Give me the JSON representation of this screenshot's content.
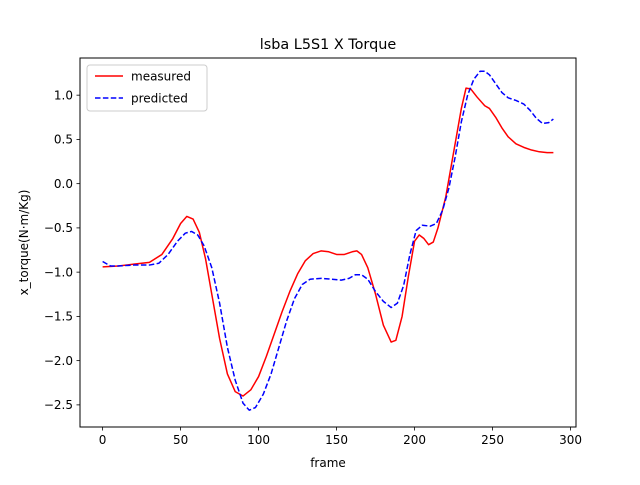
{
  "chart_data": {
    "type": "line",
    "title": "lsba L5S1 X Torque",
    "xlabel": "frame",
    "ylabel": "x_torque(N·m/Kg)",
    "xlim": [
      -14.5,
      303.5
    ],
    "ylim": [
      -2.75,
      1.42
    ],
    "xticks": [
      0,
      50,
      100,
      150,
      200,
      250,
      300
    ],
    "yticks": [
      -2.5,
      -2.0,
      -1.5,
      -1.0,
      -0.5,
      0.0,
      0.5,
      1.0
    ],
    "ytick_labels": [
      "−2.5",
      "−2.0",
      "−1.5",
      "−1.0",
      "−0.5",
      "0.0",
      "0.5",
      "1.0"
    ],
    "grid": false,
    "legend": {
      "placement": "top-left"
    },
    "series": [
      {
        "name": "measured",
        "color": "#ff0000",
        "dash": "solid",
        "points": [
          [
            0,
            -0.94
          ],
          [
            10,
            -0.93
          ],
          [
            20,
            -0.91
          ],
          [
            30,
            -0.89
          ],
          [
            38,
            -0.8
          ],
          [
            45,
            -0.62
          ],
          [
            50,
            -0.45
          ],
          [
            54,
            -0.37
          ],
          [
            58,
            -0.4
          ],
          [
            62,
            -0.55
          ],
          [
            66,
            -0.85
          ],
          [
            70,
            -1.25
          ],
          [
            75,
            -1.75
          ],
          [
            80,
            -2.15
          ],
          [
            85,
            -2.35
          ],
          [
            90,
            -2.4
          ],
          [
            95,
            -2.33
          ],
          [
            100,
            -2.18
          ],
          [
            105,
            -1.95
          ],
          [
            110,
            -1.7
          ],
          [
            115,
            -1.45
          ],
          [
            120,
            -1.22
          ],
          [
            125,
            -1.02
          ],
          [
            130,
            -0.87
          ],
          [
            135,
            -0.79
          ],
          [
            140,
            -0.76
          ],
          [
            145,
            -0.77
          ],
          [
            150,
            -0.8
          ],
          [
            155,
            -0.8
          ],
          [
            160,
            -0.77
          ],
          [
            163,
            -0.76
          ],
          [
            166,
            -0.8
          ],
          [
            170,
            -0.95
          ],
          [
            175,
            -1.25
          ],
          [
            180,
            -1.6
          ],
          [
            185,
            -1.79
          ],
          [
            188,
            -1.77
          ],
          [
            192,
            -1.5
          ],
          [
            196,
            -1.05
          ],
          [
            200,
            -0.65
          ],
          [
            203,
            -0.58
          ],
          [
            206,
            -0.62
          ],
          [
            209,
            -0.69
          ],
          [
            212,
            -0.66
          ],
          [
            215,
            -0.5
          ],
          [
            220,
            -0.15
          ],
          [
            225,
            0.35
          ],
          [
            230,
            0.85
          ],
          [
            233,
            1.08
          ],
          [
            236,
            1.07
          ],
          [
            240,
            0.98
          ],
          [
            245,
            0.88
          ],
          [
            248,
            0.85
          ],
          [
            252,
            0.75
          ],
          [
            256,
            0.63
          ],
          [
            260,
            0.53
          ],
          [
            265,
            0.45
          ],
          [
            270,
            0.41
          ],
          [
            275,
            0.38
          ],
          [
            280,
            0.36
          ],
          [
            285,
            0.35
          ],
          [
            289,
            0.35
          ]
        ]
      },
      {
        "name": "predicted",
        "color": "#0000ff",
        "dash": "dashed",
        "points": [
          [
            0,
            -0.88
          ],
          [
            5,
            -0.93
          ],
          [
            10,
            -0.93
          ],
          [
            20,
            -0.92
          ],
          [
            30,
            -0.92
          ],
          [
            36,
            -0.9
          ],
          [
            42,
            -0.8
          ],
          [
            48,
            -0.65
          ],
          [
            53,
            -0.56
          ],
          [
            57,
            -0.54
          ],
          [
            61,
            -0.58
          ],
          [
            65,
            -0.7
          ],
          [
            70,
            -0.95
          ],
          [
            75,
            -1.35
          ],
          [
            80,
            -1.85
          ],
          [
            85,
            -2.22
          ],
          [
            90,
            -2.48
          ],
          [
            94,
            -2.56
          ],
          [
            98,
            -2.53
          ],
          [
            103,
            -2.38
          ],
          [
            108,
            -2.15
          ],
          [
            113,
            -1.85
          ],
          [
            118,
            -1.55
          ],
          [
            123,
            -1.3
          ],
          [
            128,
            -1.14
          ],
          [
            133,
            -1.08
          ],
          [
            140,
            -1.07
          ],
          [
            147,
            -1.08
          ],
          [
            153,
            -1.09
          ],
          [
            158,
            -1.07
          ],
          [
            162,
            -1.03
          ],
          [
            166,
            -1.03
          ],
          [
            170,
            -1.08
          ],
          [
            175,
            -1.22
          ],
          [
            180,
            -1.33
          ],
          [
            185,
            -1.4
          ],
          [
            189,
            -1.35
          ],
          [
            193,
            -1.15
          ],
          [
            197,
            -0.8
          ],
          [
            201,
            -0.53
          ],
          [
            205,
            -0.47
          ],
          [
            210,
            -0.48
          ],
          [
            214,
            -0.45
          ],
          [
            218,
            -0.3
          ],
          [
            222,
            -0.05
          ],
          [
            226,
            0.3
          ],
          [
            230,
            0.7
          ],
          [
            234,
            1.0
          ],
          [
            238,
            1.18
          ],
          [
            242,
            1.27
          ],
          [
            245,
            1.27
          ],
          [
            248,
            1.23
          ],
          [
            252,
            1.13
          ],
          [
            256,
            1.03
          ],
          [
            260,
            0.97
          ],
          [
            265,
            0.94
          ],
          [
            270,
            0.9
          ],
          [
            274,
            0.83
          ],
          [
            278,
            0.74
          ],
          [
            282,
            0.68
          ],
          [
            286,
            0.69
          ],
          [
            289,
            0.73
          ]
        ]
      }
    ]
  }
}
